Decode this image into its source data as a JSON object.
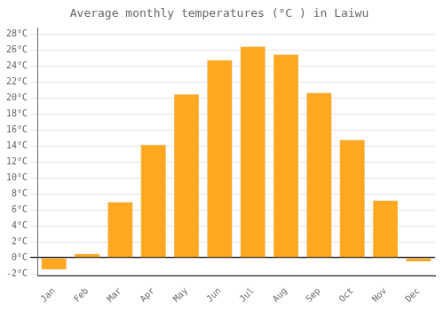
{
  "chart_data": {
    "type": "bar",
    "title": "Average monthly temperatures (°C ) in Laiwu",
    "categories": [
      "Jan",
      "Feb",
      "Mar",
      "Apr",
      "May",
      "Jun",
      "Jul",
      "Aug",
      "Sep",
      "Oct",
      "Nov",
      "Dec"
    ],
    "values": [
      -1.5,
      0.5,
      7.0,
      14.2,
      20.5,
      24.8,
      26.5,
      25.5,
      20.7,
      14.8,
      7.2,
      -0.5
    ],
    "color": "#FFA820",
    "ylim": [
      -2.3,
      28.8
    ],
    "yticks": [
      {
        "value": -2,
        "label": "-2°C"
      },
      {
        "value": 0,
        "label": "0°C"
      },
      {
        "value": 2,
        "label": "2°C"
      },
      {
        "value": 4,
        "label": "4°C"
      },
      {
        "value": 6,
        "label": "6°C"
      },
      {
        "value": 8,
        "label": "8°C"
      },
      {
        "value": 10,
        "label": "10°C"
      },
      {
        "value": 12,
        "label": "12°C"
      },
      {
        "value": 14,
        "label": "14°C"
      },
      {
        "value": 16,
        "label": "16°C"
      },
      {
        "value": 18,
        "label": "18°C"
      },
      {
        "value": 20,
        "label": "20°C"
      },
      {
        "value": 22,
        "label": "22°C"
      },
      {
        "value": 24,
        "label": "24°C"
      },
      {
        "value": 26,
        "label": "26°C"
      },
      {
        "value": 28,
        "label": "28°C"
      }
    ],
    "grid": true
  }
}
